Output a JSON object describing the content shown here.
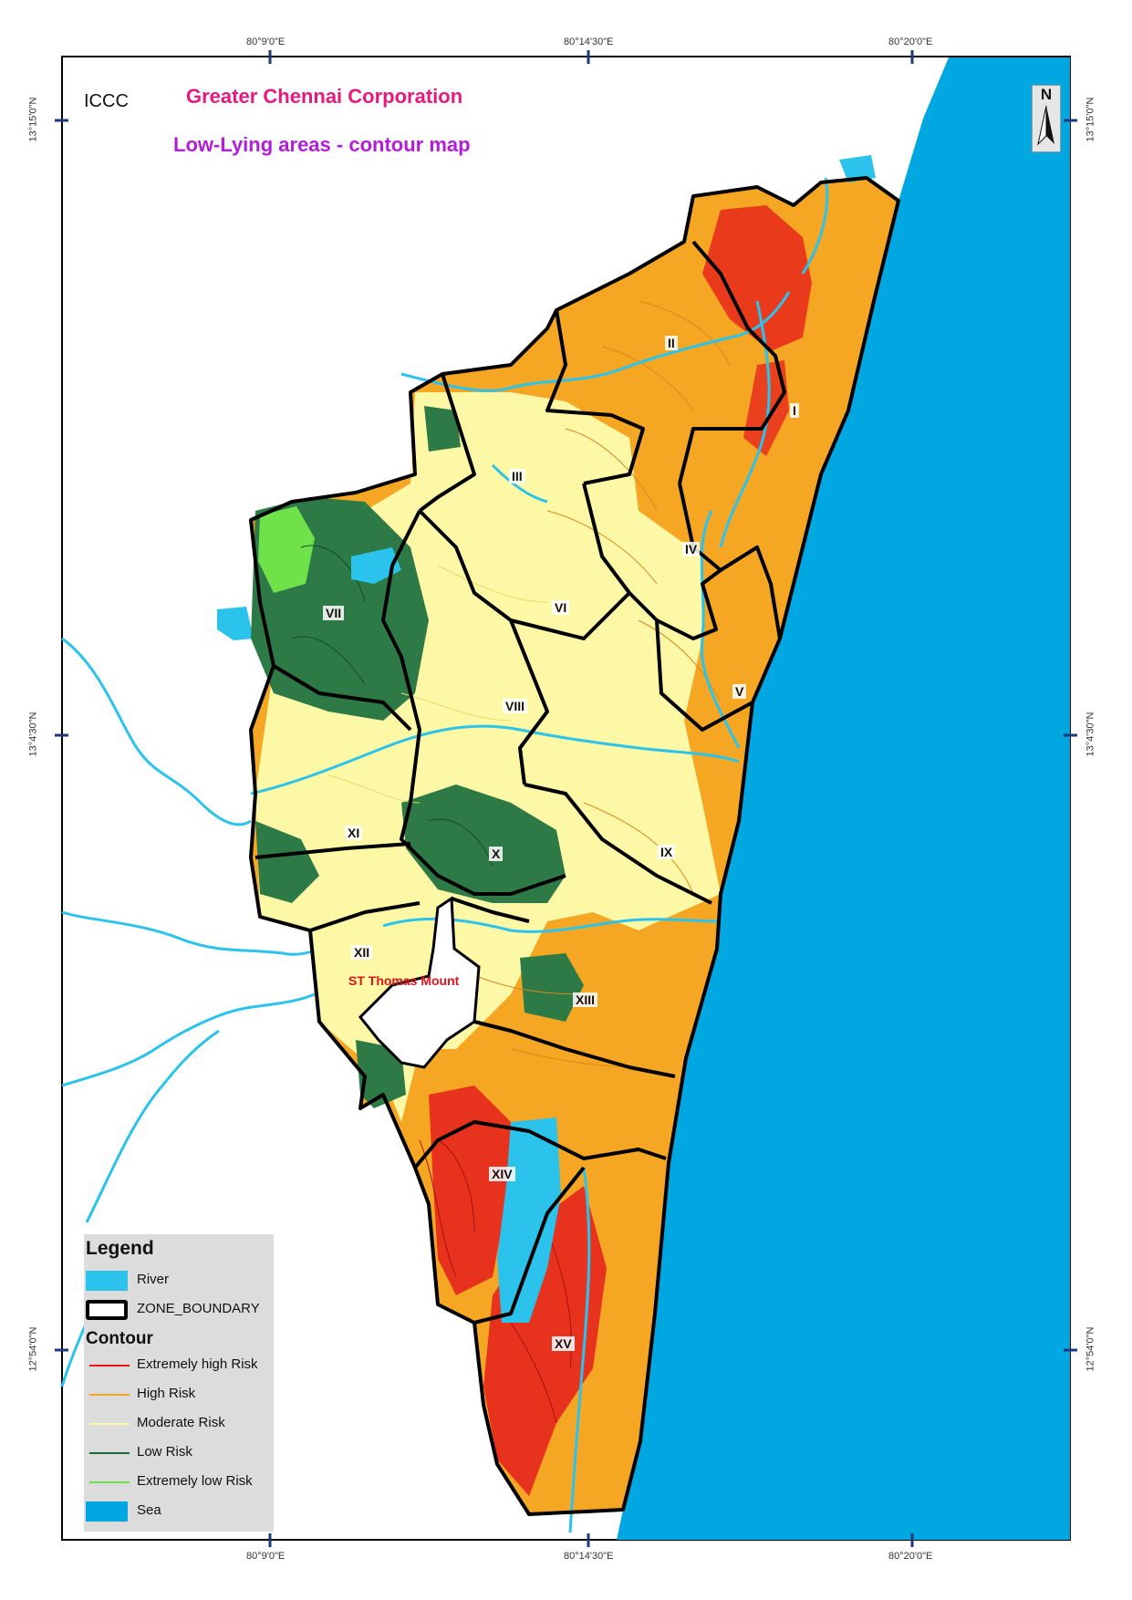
{
  "header": {
    "org_label": "ICCC",
    "title": "Greater Chennai Corporation",
    "subtitle": "Low-Lying areas - contour map"
  },
  "colors": {
    "title": "#e6197e",
    "subtitle": "#b31cd8",
    "sea": "#00a7e1",
    "river": "#2bc3ec",
    "extremely_high_risk": "#e4161b",
    "high_risk": "#f5a623",
    "moderate_risk": "#fdf8a6",
    "low_risk": "#1c6b3c",
    "extremely_low_risk": "#6fe24a",
    "zone_boundary": "#000000"
  },
  "north_arrow": {
    "label": "N"
  },
  "graticule": {
    "top": [
      "80°9'0\"E",
      "80°14'30\"E",
      "80°20'0\"E"
    ],
    "bottom": [
      "80°9'0\"E",
      "80°14'30\"E",
      "80°20'0\"E"
    ],
    "left": [
      "13°15'0\"N",
      "13°4'30\"N",
      "12°54'0\"N"
    ],
    "right": [
      "13°15'0\"N",
      "13°4'30\"N",
      "12°54'0\"N"
    ]
  },
  "zones": [
    {
      "label": "I"
    },
    {
      "label": "II"
    },
    {
      "label": "III"
    },
    {
      "label": "IV"
    },
    {
      "label": "V"
    },
    {
      "label": "VI"
    },
    {
      "label": "VII"
    },
    {
      "label": "VIII"
    },
    {
      "label": "IX"
    },
    {
      "label": "X"
    },
    {
      "label": "XI"
    },
    {
      "label": "XII"
    },
    {
      "label": "XIII"
    },
    {
      "label": "XIV"
    },
    {
      "label": "XV"
    }
  ],
  "places": {
    "st_thomas_mount": "ST Thomas Mount"
  },
  "legend": {
    "title": "Legend",
    "river": "River",
    "zone_boundary": "ZONE_BOUNDARY",
    "contour_title": "Contour",
    "items": [
      {
        "label": "Extremely high Risk",
        "color": "#e4161b"
      },
      {
        "label": "High Risk",
        "color": "#f5a623"
      },
      {
        "label": "Moderate Risk",
        "color": "#fdf8a6"
      },
      {
        "label": "Low Risk",
        "color": "#1c6b3c"
      },
      {
        "label": "Extremely low Risk",
        "color": "#6fe24a"
      }
    ],
    "sea": "Sea"
  }
}
